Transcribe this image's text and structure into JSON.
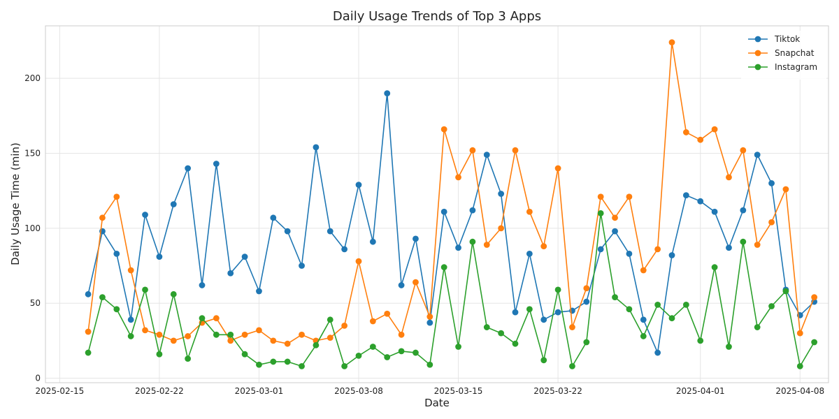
{
  "chart_data": {
    "type": "line",
    "title": "Daily Usage Trends of Top 3 Apps",
    "xlabel": "Date",
    "ylabel": "Daily Usage Time (min)",
    "ylim": [
      -3,
      235
    ],
    "yticks": [
      0,
      50,
      100,
      150,
      200
    ],
    "xlim": [
      "2025-02-14",
      "2025-04-10"
    ],
    "xticks": [
      "2025-02-15",
      "2025-02-22",
      "2025-03-01",
      "2025-03-08",
      "2025-03-15",
      "2025-03-22",
      "2025-04-01",
      "2025-04-08"
    ],
    "grid": true,
    "legend_position": "top-right",
    "x": [
      "2025-02-17",
      "2025-02-18",
      "2025-02-19",
      "2025-02-20",
      "2025-02-21",
      "2025-02-22",
      "2025-02-23",
      "2025-02-24",
      "2025-02-25",
      "2025-02-26",
      "2025-02-27",
      "2025-02-28",
      "2025-03-01",
      "2025-03-02",
      "2025-03-03",
      "2025-03-04",
      "2025-03-05",
      "2025-03-06",
      "2025-03-07",
      "2025-03-08",
      "2025-03-09",
      "2025-03-10",
      "2025-03-11",
      "2025-03-12",
      "2025-03-13",
      "2025-03-14",
      "2025-03-15",
      "2025-03-16",
      "2025-03-17",
      "2025-03-18",
      "2025-03-19",
      "2025-03-20",
      "2025-03-21",
      "2025-03-22",
      "2025-03-23",
      "2025-03-24",
      "2025-03-25",
      "2025-03-26",
      "2025-03-27",
      "2025-03-28",
      "2025-03-29",
      "2025-03-30",
      "2025-03-31",
      "2025-04-01",
      "2025-04-02",
      "2025-04-03",
      "2025-04-04",
      "2025-04-05",
      "2025-04-06",
      "2025-04-07",
      "2025-04-08",
      "2025-04-09"
    ],
    "series": [
      {
        "name": "Tiktok",
        "color": "#1f77b4",
        "values": [
          56,
          98,
          83,
          39,
          109,
          81,
          116,
          140,
          62,
          143,
          70,
          81,
          58,
          107,
          98,
          75,
          154,
          98,
          86,
          129,
          91,
          190,
          62,
          93,
          37,
          111,
          87,
          112,
          149,
          123,
          44,
          83,
          39,
          44,
          45,
          51,
          86,
          98,
          83,
          39,
          17,
          82,
          122,
          118,
          111,
          87,
          112,
          149,
          130,
          59,
          42,
          51
        ]
      },
      {
        "name": "Snapchat",
        "color": "#ff7f0e",
        "values": [
          31,
          107,
          121,
          72,
          32,
          29,
          25,
          28,
          37,
          40,
          25,
          29,
          32,
          25,
          23,
          29,
          25,
          27,
          35,
          78,
          38,
          43,
          29,
          64,
          41,
          166,
          134,
          152,
          89,
          100,
          152,
          111,
          88,
          140,
          34,
          60,
          121,
          107,
          121,
          72,
          86,
          224,
          164,
          159,
          166,
          134,
          152,
          89,
          104,
          126,
          30,
          54
        ]
      },
      {
        "name": "Instagram",
        "color": "#2ca02c",
        "values": [
          17,
          54,
          46,
          28,
          59,
          16,
          56,
          13,
          40,
          29,
          29,
          16,
          9,
          11,
          11,
          8,
          22,
          39,
          8,
          15,
          21,
          14,
          18,
          17,
          9,
          74,
          21,
          91,
          34,
          30,
          23,
          46,
          12,
          59,
          8,
          24,
          110,
          54,
          46,
          28,
          49,
          40,
          49,
          25,
          74,
          21,
          91,
          34,
          48,
          58,
          8,
          24
        ]
      }
    ]
  }
}
